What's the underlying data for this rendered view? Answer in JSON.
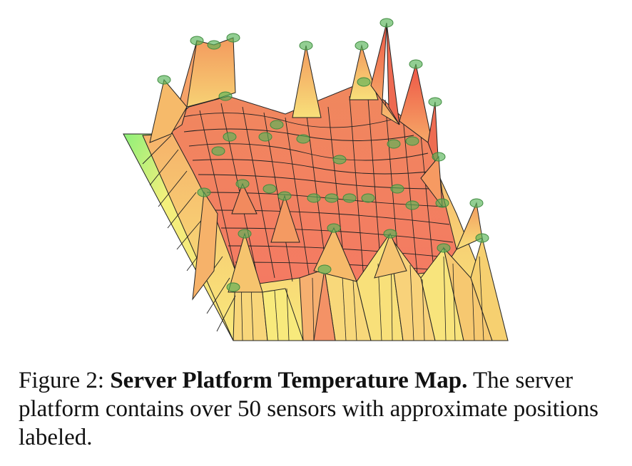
{
  "figure": {
    "caption": {
      "label": "Figure 2:",
      "title": "Server Platform Temperature Map.",
      "text": "The server platform contains over 50 sensors with approximate positions labeled."
    },
    "colors": {
      "cool": "#f8f47c",
      "warm": "#f6c46e",
      "hot": "#f48a5e",
      "hottest": "#ef5a4a",
      "edge_green": "#7ee87a",
      "sensor_marker": "#4fae4f",
      "wire": "#222222"
    },
    "sensor_marker": "green-ellipse"
  }
}
